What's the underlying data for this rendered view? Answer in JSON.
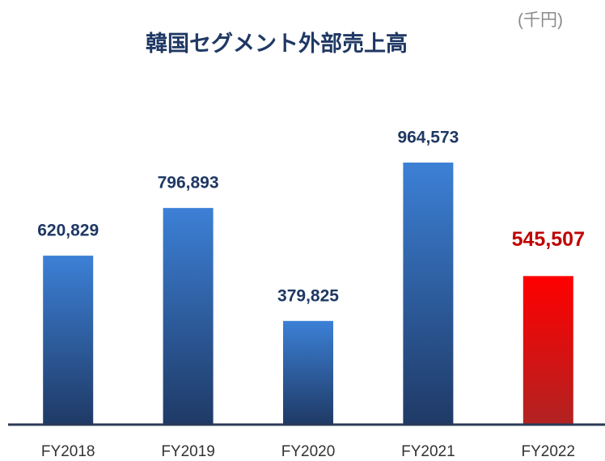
{
  "chart_data": {
    "type": "bar",
    "title": "韓国セグメント外部売上高",
    "unit": "(千円)",
    "categories": [
      "FY2018",
      "FY2019",
      "FY2020",
      "FY2021",
      "FY2022"
    ],
    "values": [
      620829,
      796893,
      379825,
      964573,
      545507
    ],
    "value_labels": [
      "620,829",
      "796,893",
      "379,825",
      "964,573",
      "545,507"
    ],
    "colors": [
      "#3c80d6",
      "#3c80d6",
      "#3c80d6",
      "#3c80d6",
      "#ff0000"
    ],
    "label_colors": [
      "#1f3864",
      "#1f3864",
      "#1f3864",
      "#1f3864",
      "#c00000"
    ]
  }
}
